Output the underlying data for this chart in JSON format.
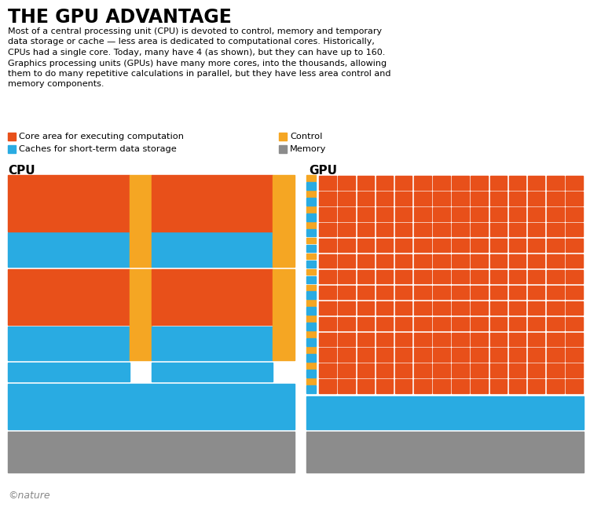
{
  "title": "THE GPU ADVANTAGE",
  "body_text": "Most of a central processing unit (CPU) is devoted to control, memory and temporary\ndata storage or cache — less area is dedicated to computational cores. Historically,\nCPUs had a single core. Today, many have 4 (as shown), but they can have up to 160.\nGraphics processing units (GPUs) have many more cores, into the thousands, allowing\nthem to do many repetitive calculations in parallel, but they have less area control and\nmemory components.",
  "legend": [
    {
      "label": "Core area for executing computation",
      "color": "#E8501A"
    },
    {
      "label": "Caches for short-term data storage",
      "color": "#29ABE2"
    },
    {
      "label": "Control",
      "color": "#F5A623"
    },
    {
      "label": "Memory",
      "color": "#8C8C8C"
    }
  ],
  "colors": {
    "orange": "#E8501A",
    "blue": "#29ABE2",
    "amber": "#F5A623",
    "gray": "#8C8C8C",
    "white": "#FFFFFF"
  },
  "cpu_label": "CPU",
  "gpu_label": "GPU",
  "nature_text": "©nature",
  "gpu_grid_cols": 14,
  "gpu_grid_rows": 14
}
